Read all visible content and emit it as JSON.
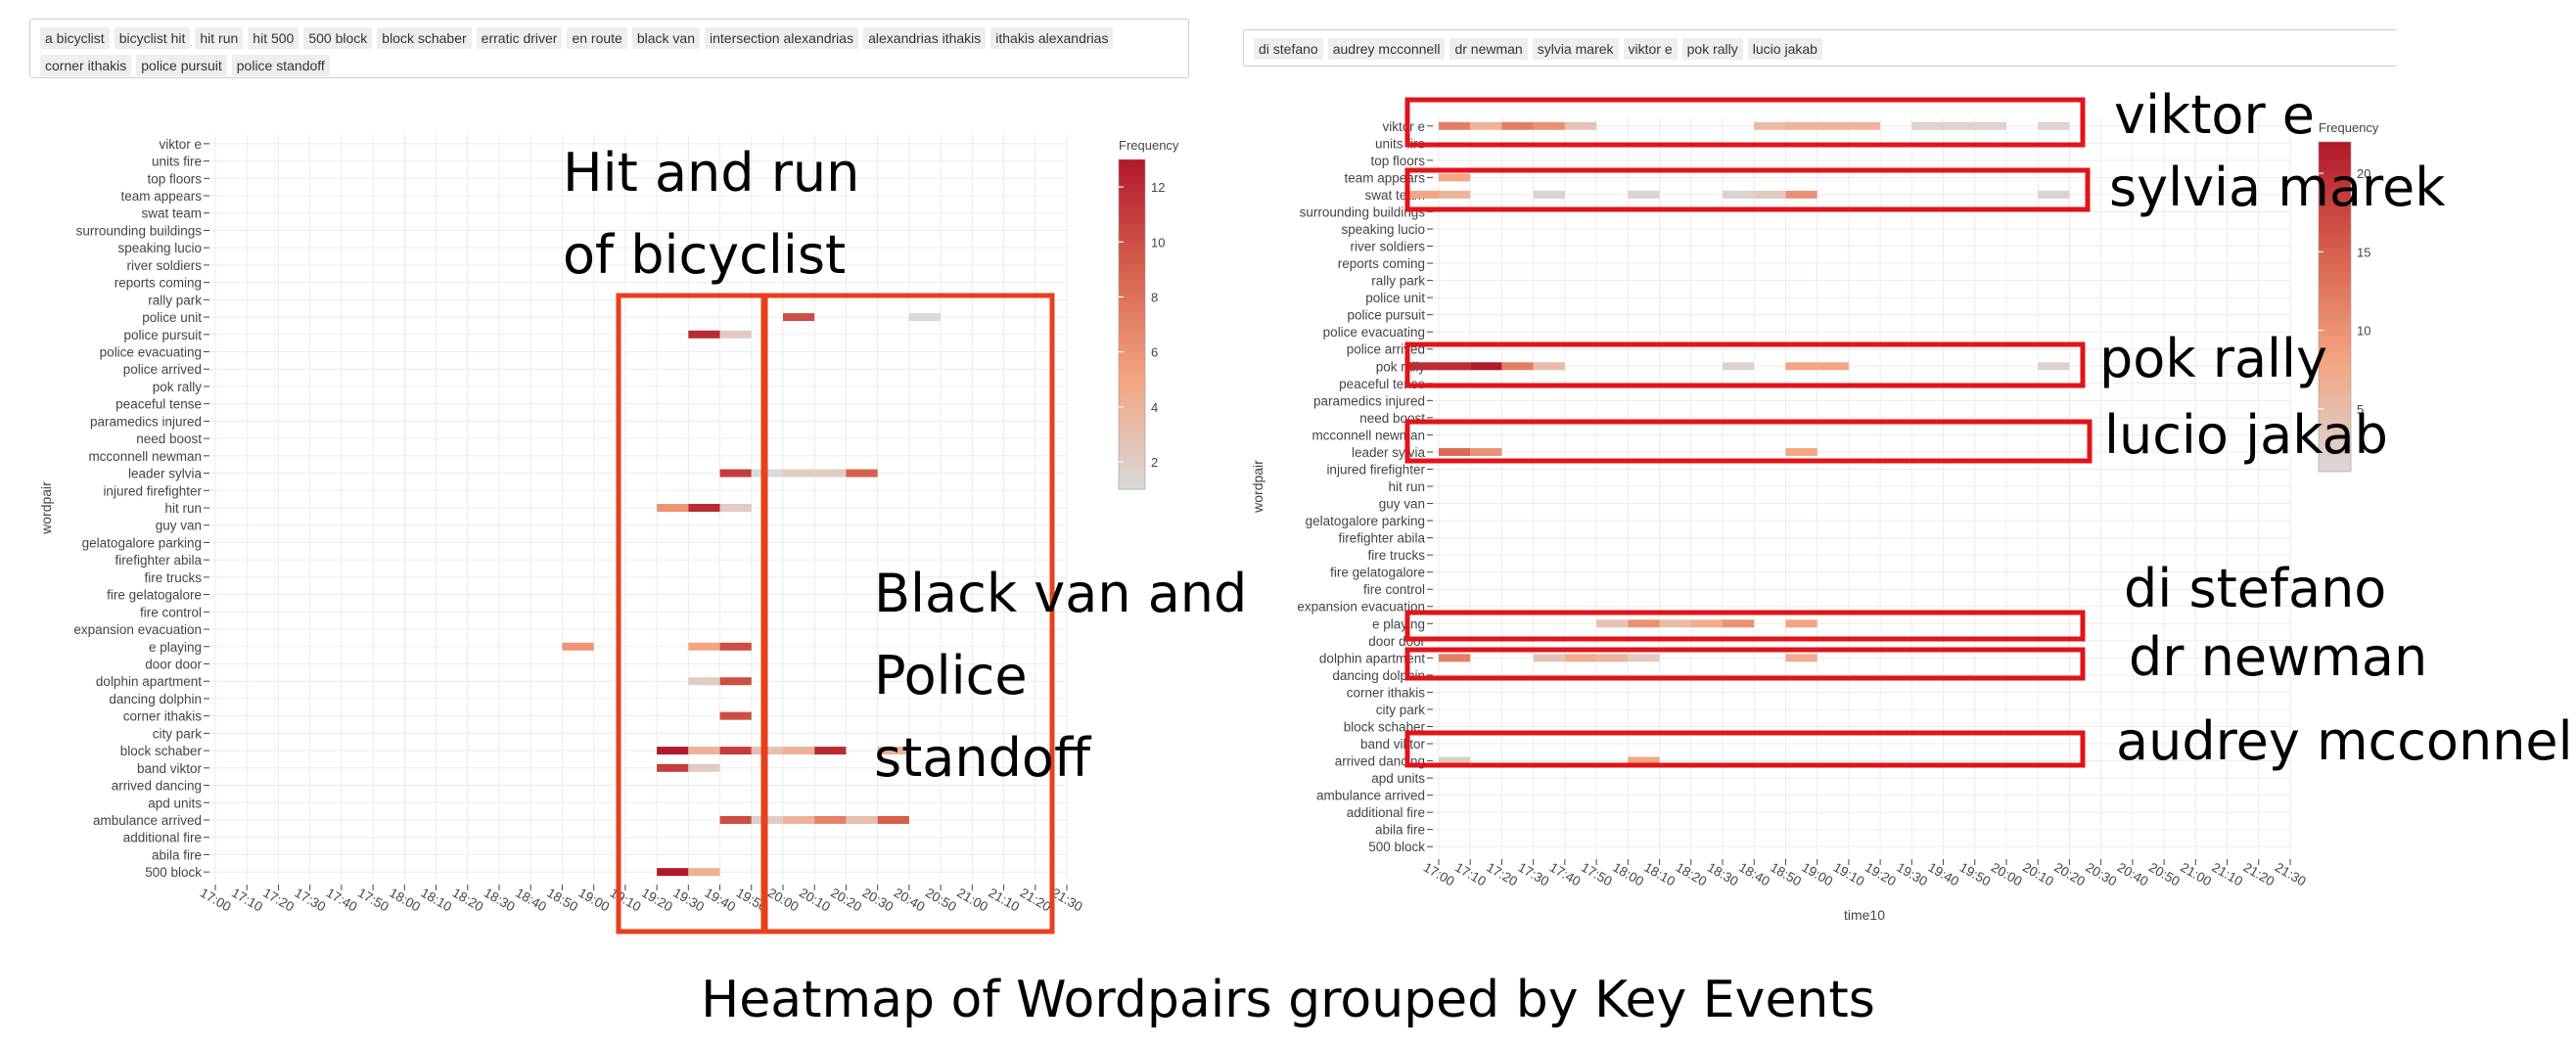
{
  "left_filter": {
    "tags": [
      "a bicyclist",
      "bicyclist hit",
      "hit run",
      "hit 500",
      "500 block",
      "block schaber",
      "erratic driver",
      "en route",
      "black van",
      "intersection alexandrias",
      "alexandrias ithakis",
      "ithakis alexandrias",
      "corner ithakis",
      "police pursuit",
      "police standoff"
    ]
  },
  "right_filter": {
    "tags": [
      "di stefano",
      "audrey mcconnell",
      "dr newman",
      "sylvia marek",
      "viktor e",
      "pok rally",
      "lucio jakab"
    ]
  },
  "annotations": {
    "left_1": "Hit and run of bicyclist",
    "left_2": "Black van and Police standoff",
    "right": [
      "viktor e",
      "sylvia marek",
      "pok rally",
      "lucio jakab",
      "di stefano",
      "dr newman",
      "audrey mcconnell"
    ]
  },
  "figure_title": "Heatmap of Wordpairs grouped by Key Events",
  "colors": {
    "scale": [
      "#d9d9d9",
      "#f4a582",
      "#d6604d",
      "#b2182b"
    ],
    "highlight_left": "#e8401c",
    "highlight_right": "#e0141b",
    "grid": "#ebebeb"
  },
  "chart_data": [
    {
      "type": "heatmap",
      "ylabel": "wordpair",
      "xlabel": "",
      "legend_title": "Frequency",
      "legend_ticks": [
        2,
        4,
        6,
        8,
        10,
        12
      ],
      "zlim": [
        1,
        13
      ],
      "x_ticks": [
        "17:00",
        "17:10",
        "17:20",
        "17:30",
        "17:40",
        "17:50",
        "18:00",
        "18:10",
        "18:20",
        "18:30",
        "18:40",
        "18:50",
        "19:00",
        "19:10",
        "19:20",
        "19:30",
        "19:40",
        "19:50",
        "20:00",
        "20:10",
        "20:20",
        "20:30",
        "20:40",
        "20:50",
        "21:00",
        "21:10",
        "21:20",
        "21:30"
      ],
      "y_categories": [
        "viktor e",
        "units fire",
        "top floors",
        "team appears",
        "swat team",
        "surrounding buildings",
        "speaking lucio",
        "river soldiers",
        "reports coming",
        "rally park",
        "police unit",
        "police pursuit",
        "police evacuating",
        "police arrived",
        "pok rally",
        "peaceful tense",
        "paramedics injured",
        "need boost",
        "mcconnell newman",
        "leader sylvia",
        "injured firefighter",
        "hit run",
        "guy van",
        "gelatogalore parking",
        "firefighter abila",
        "fire trucks",
        "fire gelatogalore",
        "fire control",
        "expansion evacuation",
        "e playing",
        "door door",
        "dolphin apartment",
        "dancing dolphin",
        "corner ithakis",
        "city park",
        "block schaber",
        "band viktor",
        "arrived dancing",
        "apd units",
        "ambulance arrived",
        "additional fire",
        "abila fire",
        "500 block"
      ],
      "cells": [
        {
          "y": "police unit",
          "x": "20:00",
          "v": 10
        },
        {
          "y": "police unit",
          "x": "20:40",
          "v": 1
        },
        {
          "y": "police pursuit",
          "x": "19:30",
          "v": 12
        },
        {
          "y": "police pursuit",
          "x": "19:40",
          "v": 2
        },
        {
          "y": "leader sylvia",
          "x": "19:40",
          "v": 11
        },
        {
          "y": "leader sylvia",
          "x": "19:50",
          "v": 1
        },
        {
          "y": "leader sylvia",
          "x": "20:00",
          "v": 2
        },
        {
          "y": "leader sylvia",
          "x": "20:10",
          "v": 2
        },
        {
          "y": "leader sylvia",
          "x": "20:20",
          "v": 9
        },
        {
          "y": "hit run",
          "x": "19:20",
          "v": 6
        },
        {
          "y": "hit run",
          "x": "19:30",
          "v": 12
        },
        {
          "y": "hit run",
          "x": "19:40",
          "v": 2
        },
        {
          "y": "e playing",
          "x": "18:50",
          "v": 6
        },
        {
          "y": "e playing",
          "x": "19:30",
          "v": 5
        },
        {
          "y": "e playing",
          "x": "19:40",
          "v": 10
        },
        {
          "y": "dolphin apartment",
          "x": "19:40",
          "v": 10
        },
        {
          "y": "dolphin apartment",
          "x": "19:30",
          "v": 2
        },
        {
          "y": "corner ithakis",
          "x": "19:40",
          "v": 10
        },
        {
          "y": "block schaber",
          "x": "19:20",
          "v": 13
        },
        {
          "y": "block schaber",
          "x": "19:30",
          "v": 4
        },
        {
          "y": "block schaber",
          "x": "19:40",
          "v": 11
        },
        {
          "y": "block schaber",
          "x": "19:50",
          "v": 3
        },
        {
          "y": "block schaber",
          "x": "20:00",
          "v": 4
        },
        {
          "y": "block schaber",
          "x": "20:10",
          "v": 12
        },
        {
          "y": "block schaber",
          "x": "20:30",
          "v": 4
        },
        {
          "y": "band viktor",
          "x": "19:20",
          "v": 11
        },
        {
          "y": "band viktor",
          "x": "19:30",
          "v": 2
        },
        {
          "y": "ambulance arrived",
          "x": "19:40",
          "v": 10
        },
        {
          "y": "ambulance arrived",
          "x": "19:50",
          "v": 2
        },
        {
          "y": "ambulance arrived",
          "x": "20:00",
          "v": 4
        },
        {
          "y": "ambulance arrived",
          "x": "20:10",
          "v": 7
        },
        {
          "y": "ambulance arrived",
          "x": "20:20",
          "v": 3
        },
        {
          "y": "ambulance arrived",
          "x": "20:30",
          "v": 9
        },
        {
          "y": "500 block",
          "x": "19:20",
          "v": 13
        },
        {
          "y": "500 block",
          "x": "19:30",
          "v": 4
        }
      ]
    },
    {
      "type": "heatmap",
      "ylabel": "wordpair",
      "xlabel": "time10",
      "legend_title": "Frequency",
      "legend_ticks": [
        5,
        10,
        15,
        20
      ],
      "zlim": [
        1,
        22
      ],
      "x_ticks": [
        "17:00",
        "17:10",
        "17:20",
        "17:30",
        "17:40",
        "17:50",
        "18:00",
        "18:10",
        "18:20",
        "18:30",
        "18:40",
        "18:50",
        "19:00",
        "19:10",
        "19:20",
        "19:30",
        "19:40",
        "19:50",
        "20:00",
        "20:10",
        "20:20",
        "20:30",
        "20:40",
        "20:50",
        "21:00",
        "21:10",
        "21:20",
        "21:30"
      ],
      "y_categories": [
        "viktor e",
        "units fire",
        "top floors",
        "team appears",
        "swat team",
        "surrounding buildings",
        "speaking lucio",
        "river soldiers",
        "reports coming",
        "rally park",
        "police unit",
        "police pursuit",
        "police evacuating",
        "police arrived",
        "pok rally",
        "peaceful tense",
        "paramedics injured",
        "need boost",
        "mcconnell newman",
        "leader sylvia",
        "injured firefighter",
        "hit run",
        "guy van",
        "gelatogalore parking",
        "firefighter abila",
        "fire trucks",
        "fire gelatogalore",
        "fire control",
        "expansion evacuation",
        "e playing",
        "door door",
        "dolphin apartment",
        "dancing dolphin",
        "corner ithakis",
        "city park",
        "block schaber",
        "band viktor",
        "arrived dancing",
        "apd units",
        "ambulance arrived",
        "additional fire",
        "abila fire",
        "500 block"
      ],
      "cells": [
        {
          "y": "viktor e",
          "x": "17:00",
          "v": 12
        },
        {
          "y": "viktor e",
          "x": "17:10",
          "v": 6
        },
        {
          "y": "viktor e",
          "x": "17:20",
          "v": 12
        },
        {
          "y": "viktor e",
          "x": "17:30",
          "v": 10
        },
        {
          "y": "viktor e",
          "x": "17:40",
          "v": 4
        },
        {
          "y": "viktor e",
          "x": "18:40",
          "v": 5
        },
        {
          "y": "viktor e",
          "x": "18:50",
          "v": 6
        },
        {
          "y": "viktor e",
          "x": "19:00",
          "v": 6
        },
        {
          "y": "viktor e",
          "x": "19:10",
          "v": 6
        },
        {
          "y": "viktor e",
          "x": "19:30",
          "v": 2
        },
        {
          "y": "viktor e",
          "x": "19:40",
          "v": 2
        },
        {
          "y": "viktor e",
          "x": "19:50",
          "v": 2
        },
        {
          "y": "viktor e",
          "x": "20:10",
          "v": 2
        },
        {
          "y": "team appears",
          "x": "17:00",
          "v": 8
        },
        {
          "y": "swat team",
          "x": "16:50",
          "v": 8
        },
        {
          "y": "swat team",
          "x": "17:00",
          "v": 6
        },
        {
          "y": "swat team",
          "x": "17:30",
          "v": 2
        },
        {
          "y": "swat team",
          "x": "18:00",
          "v": 2
        },
        {
          "y": "swat team",
          "x": "18:30",
          "v": 2
        },
        {
          "y": "swat team",
          "x": "18:40",
          "v": 3
        },
        {
          "y": "swat team",
          "x": "18:50",
          "v": 10
        },
        {
          "y": "swat team",
          "x": "20:10",
          "v": 2
        },
        {
          "y": "pok rally",
          "x": "16:50",
          "v": 20
        },
        {
          "y": "pok rally",
          "x": "17:00",
          "v": 20
        },
        {
          "y": "pok rally",
          "x": "17:10",
          "v": 22
        },
        {
          "y": "pok rally",
          "x": "17:20",
          "v": 12
        },
        {
          "y": "pok rally",
          "x": "17:30",
          "v": 5
        },
        {
          "y": "pok rally",
          "x": "18:30",
          "v": 2
        },
        {
          "y": "pok rally",
          "x": "18:50",
          "v": 8
        },
        {
          "y": "pok rally",
          "x": "19:00",
          "v": 8
        },
        {
          "y": "pok rally",
          "x": "20:10",
          "v": 2
        },
        {
          "y": "leader sylvia",
          "x": "17:00",
          "v": 14
        },
        {
          "y": "leader sylvia",
          "x": "17:10",
          "v": 10
        },
        {
          "y": "leader sylvia",
          "x": "18:50",
          "v": 8
        },
        {
          "y": "e playing",
          "x": "17:50",
          "v": 4
        },
        {
          "y": "e playing",
          "x": "18:00",
          "v": 10
        },
        {
          "y": "e playing",
          "x": "18:10",
          "v": 5
        },
        {
          "y": "e playing",
          "x": "18:20",
          "v": 7
        },
        {
          "y": "e playing",
          "x": "18:30",
          "v": 10
        },
        {
          "y": "e playing",
          "x": "18:50",
          "v": 8
        },
        {
          "y": "dolphin apartment",
          "x": "17:00",
          "v": 12
        },
        {
          "y": "dolphin apartment",
          "x": "17:30",
          "v": 4
        },
        {
          "y": "dolphin apartment",
          "x": "17:40",
          "v": 7
        },
        {
          "y": "dolphin apartment",
          "x": "17:50",
          "v": 6
        },
        {
          "y": "dolphin apartment",
          "x": "18:00",
          "v": 3
        },
        {
          "y": "dolphin apartment",
          "x": "18:50",
          "v": 7
        },
        {
          "y": "arrived dancing",
          "x": "17:00",
          "v": 3
        },
        {
          "y": "arrived dancing",
          "x": "18:00",
          "v": 8
        }
      ]
    }
  ]
}
